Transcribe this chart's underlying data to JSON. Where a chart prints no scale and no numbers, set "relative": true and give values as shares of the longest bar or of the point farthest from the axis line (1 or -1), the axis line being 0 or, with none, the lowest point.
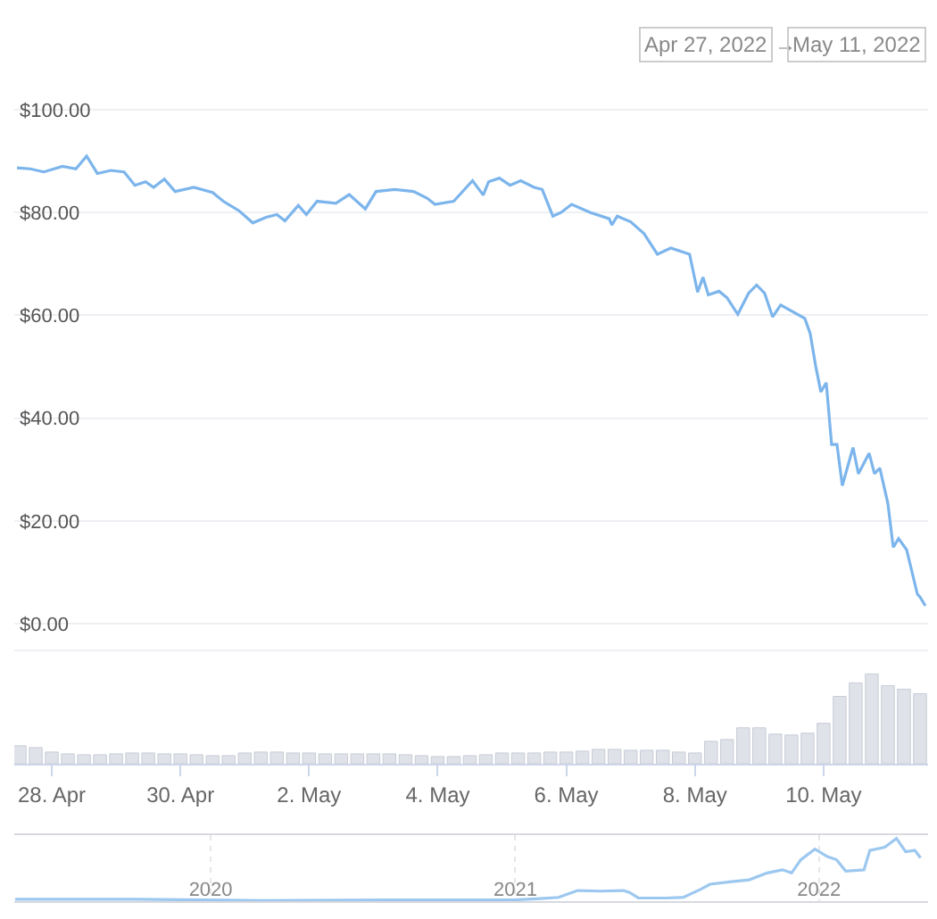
{
  "chart_data": [
    {
      "type": "line",
      "color": "#7cb5ec",
      "grid": "y",
      "tick_labels": "y",
      "annotations": [
        "Apr 27, 2022",
        "→",
        "May 11, 2022"
      ],
      "x": [
        "2022-04-27T11:00",
        "2022-04-27T16:00",
        "2022-04-27T21:00",
        "2022-04-28T04:00",
        "2022-04-28T09:00",
        "2022-04-28T13:00",
        "2022-04-28T17:00",
        "2022-04-28T22:00",
        "2022-04-29T03:00",
        "2022-04-29T07:00",
        "2022-04-29T11:00",
        "2022-04-29T14:00",
        "2022-04-29T18:00",
        "2022-04-29T22:00",
        "2022-04-30T05:00",
        "2022-04-30T12:00",
        "2022-04-30T16:00",
        "2022-04-30T22:00",
        "2022-05-01T03:00",
        "2022-05-01T08:00",
        "2022-05-01T12:00",
        "2022-05-01T15:00",
        "2022-05-01T20:00",
        "2022-05-01T23:00",
        "2022-05-02T03:00",
        "2022-05-02T10:00",
        "2022-05-02T15:00",
        "2022-05-02T21:00",
        "2022-05-03T01:00",
        "2022-05-03T08:00",
        "2022-05-03T15:00",
        "2022-05-03T20:00",
        "2022-05-03T23:00",
        "2022-05-04T06:00",
        "2022-05-04T13:00",
        "2022-05-04T17:00",
        "2022-05-04T19:00",
        "2022-05-04T23:00",
        "2022-05-05T03:00",
        "2022-05-05T07:00",
        "2022-05-05T12:00",
        "2022-05-05T15:00",
        "2022-05-05T19:00",
        "2022-05-05T22:00",
        "2022-05-06T02:00",
        "2022-05-06T09:00",
        "2022-05-06T16:00",
        "2022-05-06T17:00",
        "2022-05-06T19:00",
        "2022-05-07T00:00",
        "2022-05-07T05:00",
        "2022-05-07T10:00",
        "2022-05-07T15:00",
        "2022-05-07T22:00",
        "2022-05-08T01:00",
        "2022-05-08T03:00",
        "2022-05-08T05:00",
        "2022-05-08T09:00",
        "2022-05-08T12:00",
        "2022-05-08T16:00",
        "2022-05-08T20:00",
        "2022-05-08T23:00",
        "2022-05-09T02:00",
        "2022-05-09T05:00",
        "2022-05-09T08:00",
        "2022-05-09T17:00",
        "2022-05-09T19:00",
        "2022-05-09T21:00",
        "2022-05-09T23:00",
        "2022-05-10T01:00",
        "2022-05-10T03:00",
        "2022-05-10T05:00",
        "2022-05-10T07:00",
        "2022-05-10T11:00",
        "2022-05-10T13:00",
        "2022-05-10T17:00",
        "2022-05-10T19:00",
        "2022-05-10T21:00",
        "2022-05-11T00:00",
        "2022-05-11T02:00",
        "2022-05-11T04:00",
        "2022-05-11T07:00",
        "2022-05-11T11:00",
        "2022-05-11T12:00",
        "2022-05-11T14:00"
      ],
      "values": [
        88.7,
        88.5,
        87.9,
        89.0,
        88.5,
        91.0,
        87.6,
        88.2,
        87.9,
        85.3,
        86.0,
        84.9,
        86.5,
        84.1,
        84.9,
        83.9,
        82.2,
        80.3,
        78.0,
        79.1,
        79.6,
        78.4,
        81.4,
        79.6,
        82.2,
        81.8,
        83.5,
        80.7,
        84.1,
        84.5,
        84.1,
        82.8,
        81.6,
        82.2,
        86.2,
        83.4,
        86.0,
        86.7,
        85.3,
        86.2,
        84.9,
        84.5,
        79.3,
        80.0,
        81.6,
        80.0,
        78.8,
        77.6,
        79.3,
        78.2,
        75.9,
        71.9,
        73.1,
        71.9,
        64.5,
        67.4,
        64.0,
        64.7,
        63.4,
        60.2,
        64.3,
        65.9,
        64.3,
        59.7,
        62.0,
        59.4,
        56.5,
        50.3,
        45.1,
        46.9,
        34.9,
        34.9,
        26.9,
        34.3,
        29.2,
        33.2,
        29.2,
        30.3,
        23.4,
        14.9,
        16.6,
        14.4,
        5.8,
        5.2,
        3.5
      ],
      "xlim": [
        "2022-04-27T10:00",
        "2022-05-11T15:00"
      ],
      "ylim": [
        -5,
        121
      ],
      "yticks": [
        {
          "value": 0,
          "label": "$0.00"
        },
        {
          "value": 20,
          "label": "$20.00"
        },
        {
          "value": 40,
          "label": "$40.00"
        },
        {
          "value": 60,
          "label": "$60.00"
        },
        {
          "value": 80,
          "label": "$80.00"
        },
        {
          "value": 100,
          "label": "$100.00"
        }
      ]
    },
    {
      "type": "bar",
      "color": "#dfe2e8",
      "relative": true,
      "tick_labels": "x",
      "x": [
        "2022-04-27T12:00",
        "2022-04-27T18:00",
        "2022-04-28T00:00",
        "2022-04-28T06:00",
        "2022-04-28T12:00",
        "2022-04-28T18:00",
        "2022-04-29T00:00",
        "2022-04-29T06:00",
        "2022-04-29T12:00",
        "2022-04-29T18:00",
        "2022-04-30T00:00",
        "2022-04-30T06:00",
        "2022-04-30T12:00",
        "2022-04-30T18:00",
        "2022-05-01T00:00",
        "2022-05-01T06:00",
        "2022-05-01T12:00",
        "2022-05-01T18:00",
        "2022-05-02T00:00",
        "2022-05-02T06:00",
        "2022-05-02T12:00",
        "2022-05-02T18:00",
        "2022-05-03T00:00",
        "2022-05-03T06:00",
        "2022-05-03T12:00",
        "2022-05-03T18:00",
        "2022-05-04T00:00",
        "2022-05-04T06:00",
        "2022-05-04T12:00",
        "2022-05-04T18:00",
        "2022-05-05T00:00",
        "2022-05-05T06:00",
        "2022-05-05T12:00",
        "2022-05-05T18:00",
        "2022-05-06T00:00",
        "2022-05-06T06:00",
        "2022-05-06T12:00",
        "2022-05-06T18:00",
        "2022-05-07T00:00",
        "2022-05-07T06:00",
        "2022-05-07T12:00",
        "2022-05-07T18:00",
        "2022-05-08T00:00",
        "2022-05-08T06:00",
        "2022-05-08T12:00",
        "2022-05-08T18:00",
        "2022-05-09T00:00",
        "2022-05-09T06:00",
        "2022-05-09T12:00",
        "2022-05-09T18:00",
        "2022-05-10T00:00",
        "2022-05-10T06:00",
        "2022-05-10T12:00",
        "2022-05-10T18:00",
        "2022-05-11T00:00",
        "2022-05-11T06:00",
        "2022-05-11T12:00"
      ],
      "values": [
        0.2,
        0.18,
        0.13,
        0.11,
        0.1,
        0.1,
        0.11,
        0.12,
        0.12,
        0.11,
        0.11,
        0.1,
        0.09,
        0.09,
        0.12,
        0.13,
        0.13,
        0.12,
        0.12,
        0.11,
        0.11,
        0.11,
        0.11,
        0.11,
        0.1,
        0.09,
        0.08,
        0.08,
        0.09,
        0.1,
        0.12,
        0.12,
        0.12,
        0.13,
        0.13,
        0.14,
        0.16,
        0.16,
        0.15,
        0.15,
        0.15,
        0.13,
        0.12,
        0.25,
        0.27,
        0.4,
        0.4,
        0.33,
        0.32,
        0.34,
        0.45,
        0.75,
        0.9,
        1.0,
        0.87,
        0.83,
        0.78
      ],
      "xlim": [
        "2022-04-27T10:00",
        "2022-05-11T15:00"
      ],
      "xticks": [
        {
          "value": "2022-04-28",
          "label": "28. Apr"
        },
        {
          "value": "2022-04-30",
          "label": "30. Apr"
        },
        {
          "value": "2022-05-02",
          "label": "2. May"
        },
        {
          "value": "2022-05-04",
          "label": "4. May"
        },
        {
          "value": "2022-05-06",
          "label": "6. May"
        },
        {
          "value": "2022-05-08",
          "label": "8. May"
        },
        {
          "value": "2022-05-10",
          "label": "10. May"
        }
      ]
    },
    {
      "type": "line",
      "color": "#9cc8f0",
      "relative": true,
      "grid": "x",
      "tick_labels": "x",
      "x": [
        "2019-05-11",
        "2019-10-01",
        "2020-03-01",
        "2020-08-01",
        "2020-12-31",
        "2021-01-31",
        "2021-02-22",
        "2021-03-17",
        "2021-04-13",
        "2021-05-11",
        "2021-05-18",
        "2021-05-29",
        "2021-06-30",
        "2021-07-22",
        "2021-08-12",
        "2021-08-23",
        "2021-09-18",
        "2021-10-09",
        "2021-10-31",
        "2021-11-18",
        "2021-11-29",
        "2021-12-10",
        "2021-12-27",
        "2022-01-11",
        "2022-01-22",
        "2022-02-02",
        "2022-02-24",
        "2022-03-03",
        "2022-03-21",
        "2022-04-04",
        "2022-04-15",
        "2022-04-26",
        "2022-05-03"
      ],
      "values": [
        0.03,
        0.03,
        0.01,
        0.02,
        0.02,
        0.04,
        0.06,
        0.17,
        0.16,
        0.17,
        0.14,
        0.05,
        0.05,
        0.06,
        0.19,
        0.27,
        0.31,
        0.34,
        0.45,
        0.5,
        0.45,
        0.66,
        0.83,
        0.71,
        0.66,
        0.48,
        0.5,
        0.81,
        0.86,
        1.0,
        0.79,
        0.81,
        0.69
      ],
      "xlim": [
        "2019-05-10",
        "2022-05-12"
      ],
      "xticks": [
        {
          "value": "2020-01-01",
          "label": "2020"
        },
        {
          "value": "2021-01-01",
          "label": "2021"
        },
        {
          "value": "2022-01-01",
          "label": "2022"
        }
      ]
    }
  ]
}
